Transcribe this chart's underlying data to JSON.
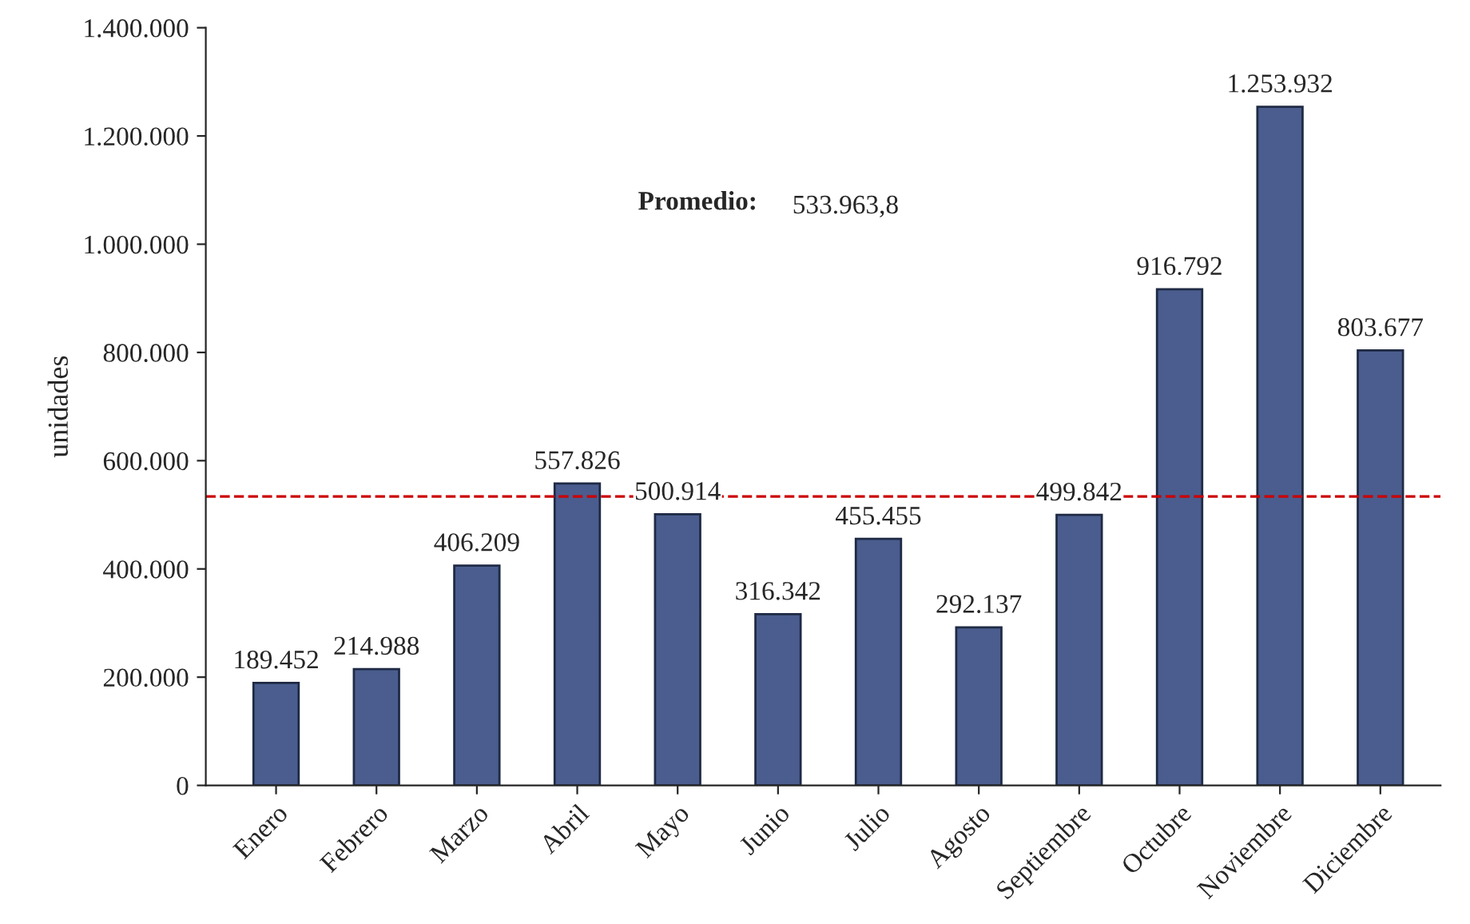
{
  "chart_data": {
    "type": "bar",
    "ylabel": "unidades",
    "categories": [
      "Enero",
      "Febrero",
      "Marzo",
      "Abril",
      "Mayo",
      "Junio",
      "Julio",
      "Agosto",
      "Septiembre",
      "Octubre",
      "Noviembre",
      "Diciembre"
    ],
    "values": [
      189452,
      214988,
      406209,
      557826,
      500914,
      316342,
      455455,
      292137,
      499842,
      916792,
      1253932,
      803677
    ],
    "value_labels": [
      "189.452",
      "214.988",
      "406.209",
      "557.826",
      "500.914",
      "316.342",
      "455.455",
      "292.137",
      "499.842",
      "916.792",
      "1.253.932",
      "803.677"
    ],
    "color": "#4a5d8e",
    "ylim": [
      0,
      1400000
    ],
    "yticks": [
      {
        "value": 0,
        "label": "0"
      },
      {
        "value": 200000,
        "label": "200.000"
      },
      {
        "value": 400000,
        "label": "400.000"
      },
      {
        "value": 600000,
        "label": "600.000"
      },
      {
        "value": 800000,
        "label": "800.000"
      },
      {
        "value": 1000000,
        "label": "1.000.000"
      },
      {
        "value": 1200000,
        "label": "1.200.000"
      },
      {
        "value": 1400000,
        "label": "1.400.000"
      }
    ],
    "ref_lines": [
      {
        "axis": "y",
        "value": 533963.8,
        "color": "#cc0000",
        "line_style": "dashed"
      }
    ],
    "annotations": [
      "Promedio:",
      "533.963,8"
    ],
    "grid": false,
    "legend": false
  }
}
